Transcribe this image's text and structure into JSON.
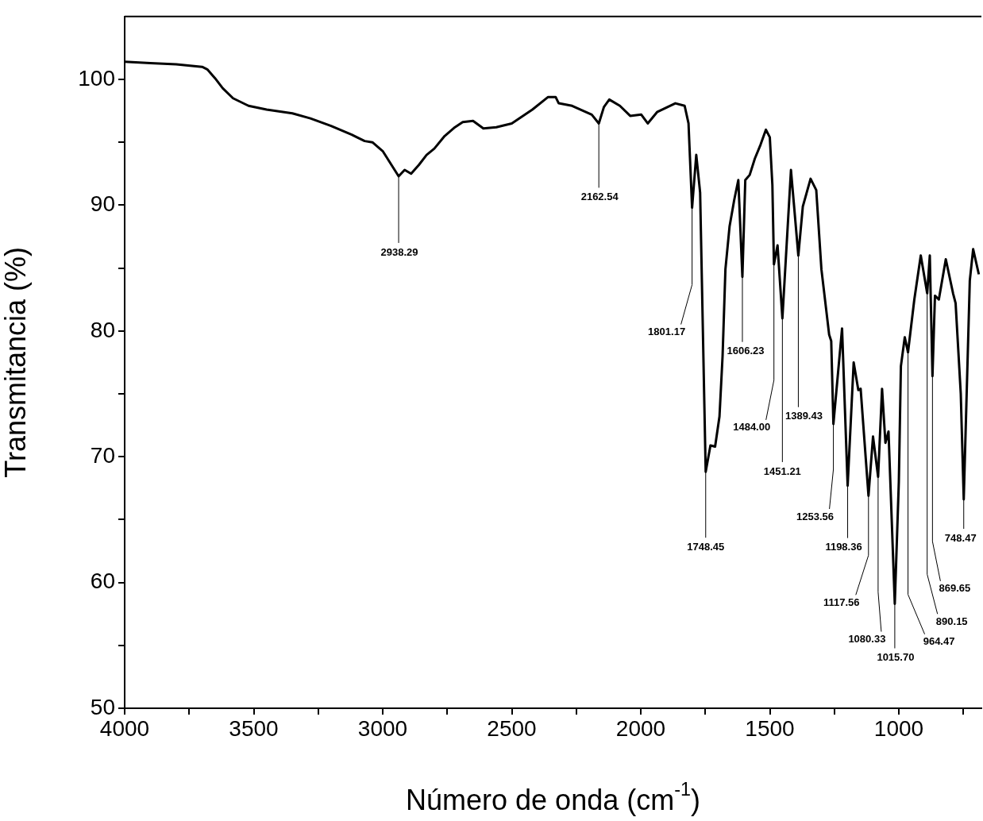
{
  "chart_data": {
    "type": "line",
    "xlabel": "Número de onda (cm$^{-1}$)",
    "ylabel": "Transmitancia (%)",
    "xlim": [
      4000,
      680
    ],
    "ylim": [
      50,
      105
    ],
    "xticks": [
      4000,
      {
        "value": 3750,
        "label": null
      },
      3500,
      {
        "value": 3250,
        "label": null
      },
      3000,
      {
        "value": 2750,
        "label": null
      },
      2500,
      {
        "value": 2250,
        "label": null
      },
      2000,
      {
        "value": 1750,
        "label": null
      },
      1500,
      {
        "value": 1250,
        "label": null
      },
      1000,
      {
        "value": 750,
        "label": null
      }
    ],
    "yticks": [
      50,
      {
        "value": 55,
        "label": null
      },
      60,
      {
        "value": 65,
        "label": null
      },
      70,
      {
        "value": 75,
        "label": null
      },
      80,
      {
        "value": 85,
        "label": null
      },
      90,
      {
        "value": 95,
        "label": null
      },
      100
    ],
    "grid": false,
    "legend": false,
    "marker": "none",
    "x": [
      4000,
      3900,
      3800,
      3700,
      3680,
      3650,
      3620,
      3580,
      3520,
      3450,
      3350,
      3280,
      3200,
      3120,
      3100,
      3070,
      3040,
      3000,
      2938.29,
      2915,
      2890,
      2860,
      2830,
      2800,
      2760,
      2720,
      2690,
      2650,
      2610,
      2560,
      2500,
      2420,
      2359,
      2330,
      2318,
      2266,
      2190,
      2162.54,
      2143,
      2122,
      2081,
      2041,
      1998,
      1973,
      1937,
      1866,
      1830,
      1815,
      1801.17,
      1785,
      1770,
      1748.45,
      1730,
      1712,
      1695,
      1683,
      1672,
      1656,
      1638,
      1622,
      1606.23,
      1595,
      1578,
      1558,
      1536,
      1515,
      1500,
      1490,
      1484.0,
      1470,
      1451.21,
      1418,
      1389.43,
      1372,
      1342,
      1320,
      1300,
      1270,
      1262,
      1253.56,
      1220,
      1198.36,
      1175,
      1157,
      1148,
      1117.56,
      1100,
      1080.33,
      1065,
      1052,
      1040,
      1015.7,
      1000,
      992,
      977,
      964.47,
      940,
      915,
      890.15,
      880,
      869.65,
      860,
      845,
      818,
      790,
      780,
      760,
      748.47,
      725,
      712,
      690
    ],
    "series": [
      {
        "color": "#000000",
        "values": [
          101.4,
          101.3,
          101.2,
          101.0,
          100.8,
          100.1,
          99.3,
          98.5,
          97.9,
          97.6,
          97.3,
          96.9,
          96.3,
          95.6,
          95.4,
          95.1,
          95.0,
          94.3,
          92.3,
          92.8,
          92.5,
          93.2,
          94.0,
          94.5,
          95.5,
          96.2,
          96.6,
          96.7,
          96.1,
          96.2,
          96.5,
          97.6,
          98.6,
          98.6,
          98.1,
          97.9,
          97.2,
          96.5,
          97.8,
          98.4,
          97.9,
          97.1,
          97.2,
          96.5,
          97.4,
          98.1,
          97.9,
          96.5,
          89.8,
          94.0,
          91.0,
          68.8,
          70.9,
          70.8,
          73.2,
          78.0,
          84.9,
          88.3,
          90.4,
          92.0,
          84.3,
          92.0,
          92.4,
          93.7,
          94.8,
          96.0,
          95.4,
          91.6,
          85.3,
          86.8,
          81.0,
          92.8,
          86.0,
          89.9,
          92.1,
          91.2,
          84.9,
          79.7,
          79.2,
          72.6,
          80.2,
          67.7,
          77.5,
          75.3,
          75.4,
          66.9,
          71.6,
          68.4,
          75.4,
          71.1,
          72.0,
          58.3,
          68.0,
          77.2,
          79.5,
          78.3,
          82.5,
          86.0,
          83.0,
          86.0,
          76.4,
          82.8,
          82.5,
          85.7,
          83.0,
          82.2,
          75.0,
          66.6,
          84.0,
          86.5,
          84.5
        ]
      }
    ],
    "annotations": [
      {
        "text": "2938.29",
        "x": 2938.29,
        "y": 92.3
      },
      {
        "text": "2162.54",
        "x": 2162.54,
        "y": 96.5
      },
      {
        "text": "1801.17",
        "x": 1801.17,
        "y": 89.8
      },
      {
        "text": "1748.45",
        "x": 1748.45,
        "y": 68.8
      },
      {
        "text": "1606.23",
        "x": 1606.23,
        "y": 84.3
      },
      {
        "text": "1484.00",
        "x": 1484.0,
        "y": 85.3
      },
      {
        "text": "1451.21",
        "x": 1451.21,
        "y": 81.0
      },
      {
        "text": "1389.43",
        "x": 1389.43,
        "y": 86.0
      },
      {
        "text": "1253.56",
        "x": 1253.56,
        "y": 72.6
      },
      {
        "text": "1198.36",
        "x": 1198.36,
        "y": 67.7
      },
      {
        "text": "1117.56",
        "x": 1117.56,
        "y": 66.9
      },
      {
        "text": "1080.33",
        "x": 1080.33,
        "y": 68.4
      },
      {
        "text": "1015.70",
        "x": 1015.7,
        "y": 58.3
      },
      {
        "text": "964.47",
        "x": 964.47,
        "y": 78.3
      },
      {
        "text": "890.15",
        "x": 890.15,
        "y": 83.0
      },
      {
        "text": "869.65",
        "x": 869.65,
        "y": 76.4
      },
      {
        "text": "748.47",
        "x": 748.47,
        "y": 66.6
      }
    ]
  }
}
